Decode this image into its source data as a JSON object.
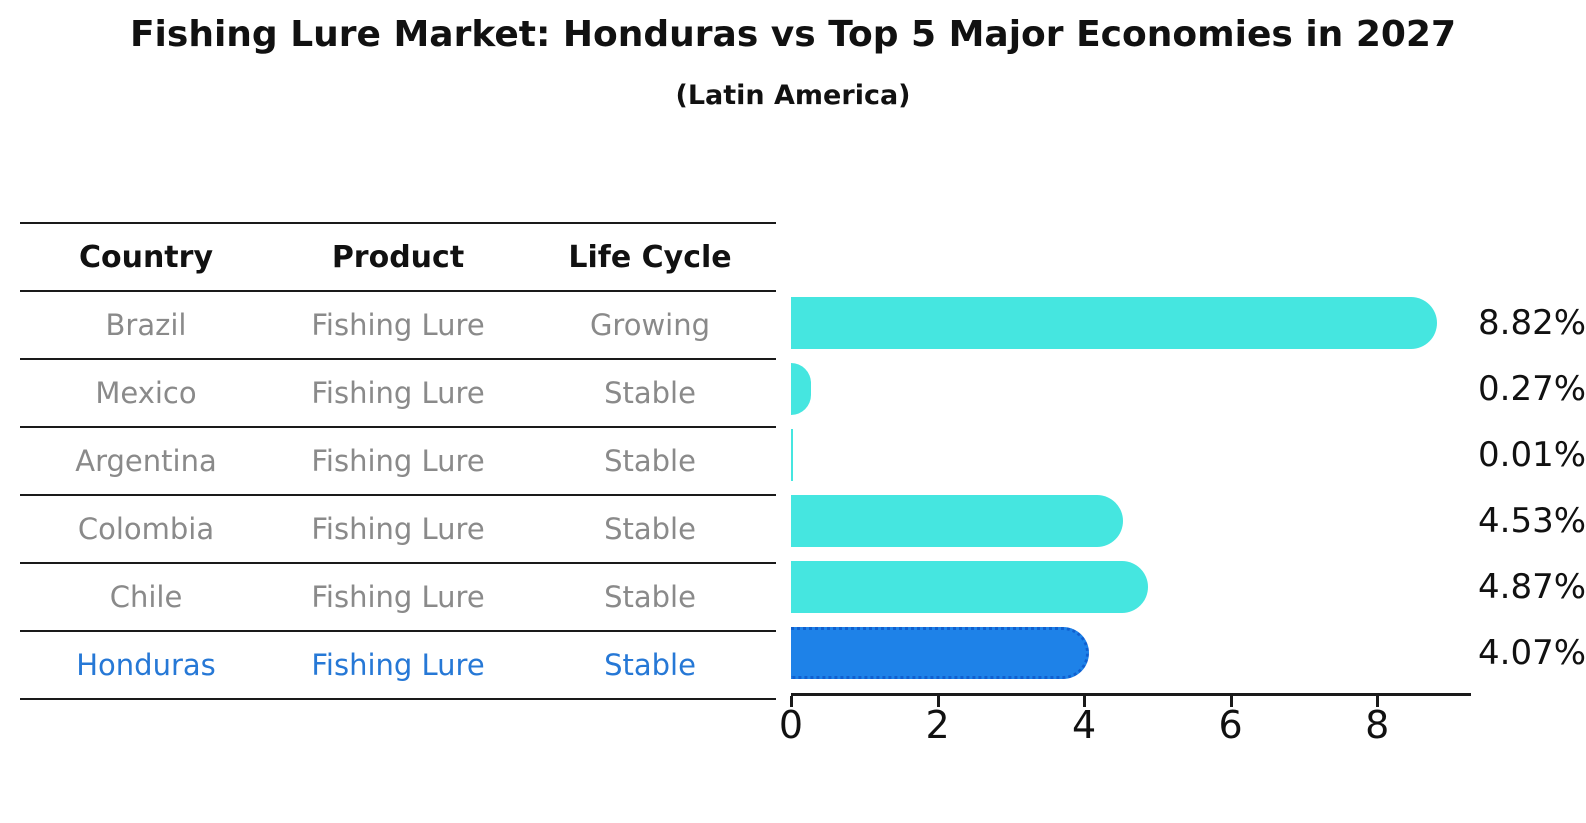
{
  "title": "Fishing Lure Market: Honduras vs Top 5 Major Economies in 2027",
  "subtitle": "(Latin America)",
  "table": {
    "headers": [
      "Country",
      "Product",
      "Life Cycle"
    ],
    "rows": [
      {
        "country": "Brazil",
        "product": "Fishing Lure",
        "life_cycle": "Growing",
        "highlight": false
      },
      {
        "country": "Mexico",
        "product": "Fishing Lure",
        "life_cycle": "Stable",
        "highlight": false
      },
      {
        "country": "Argentina",
        "product": "Fishing Lure",
        "life_cycle": "Stable",
        "highlight": false
      },
      {
        "country": "Colombia",
        "product": "Fishing Lure",
        "life_cycle": "Stable",
        "highlight": false
      },
      {
        "country": "Chile",
        "product": "Fishing Lure",
        "life_cycle": "Stable",
        "highlight": false
      },
      {
        "country": "Honduras",
        "product": "Fishing Lure",
        "life_cycle": "Stable",
        "highlight": true
      }
    ]
  },
  "chart_data": {
    "type": "bar",
    "orientation": "horizontal",
    "title": "Fishing Lure Market: Honduras vs Top 5 Major Economies in 2027 (Latin America)",
    "categories": [
      "Brazil",
      "Mexico",
      "Argentina",
      "Colombia",
      "Chile",
      "Honduras"
    ],
    "values": [
      8.82,
      0.27,
      0.01,
      4.53,
      4.87,
      4.07
    ],
    "value_labels": [
      "8.82%",
      "0.27%",
      "0.01%",
      "4.53%",
      "4.87%",
      "4.07%"
    ],
    "unit": "%",
    "highlight_index": 5,
    "x_ticks": [
      0,
      2,
      4,
      6,
      8
    ],
    "xlim": [
      0,
      9.28
    ],
    "grid": false,
    "legend": false,
    "colors": {
      "bar": "#45e6e0",
      "highlight_bar": "#1e82e8",
      "highlight_bar_border": "#1060d0",
      "highlight_text": "#2678d6",
      "row_text": "#8a8a8a",
      "header_text": "#111111",
      "axis": "#1a1a1a"
    }
  }
}
